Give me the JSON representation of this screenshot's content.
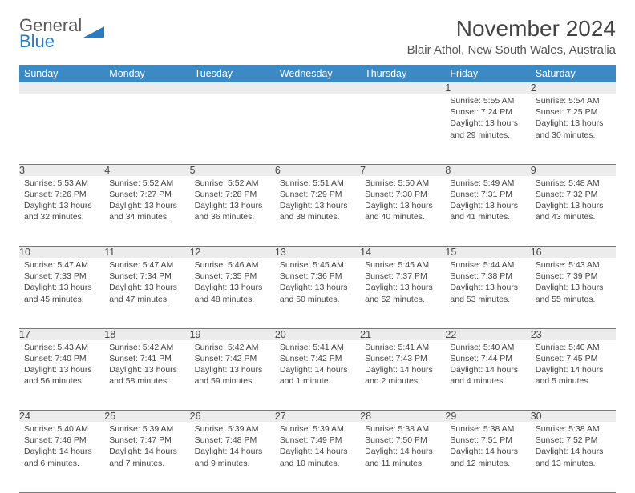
{
  "logo": {
    "line1": "General",
    "line2": "Blue",
    "accent_color": "#2b7bbf",
    "text_color": "#6a6a6a"
  },
  "title": "November 2024",
  "location": "Blair Athol, New South Wales, Australia",
  "day_headers": [
    "Sunday",
    "Monday",
    "Tuesday",
    "Wednesday",
    "Thursday",
    "Friday",
    "Saturday"
  ],
  "header_bg": "#3b8ac4",
  "daynum_bg": "#ececec",
  "weeks": [
    [
      null,
      null,
      null,
      null,
      null,
      {
        "n": "1",
        "sunrise": "Sunrise: 5:55 AM",
        "sunset": "Sunset: 7:24 PM",
        "daylight": "Daylight: 13 hours and 29 minutes."
      },
      {
        "n": "2",
        "sunrise": "Sunrise: 5:54 AM",
        "sunset": "Sunset: 7:25 PM",
        "daylight": "Daylight: 13 hours and 30 minutes."
      }
    ],
    [
      {
        "n": "3",
        "sunrise": "Sunrise: 5:53 AM",
        "sunset": "Sunset: 7:26 PM",
        "daylight": "Daylight: 13 hours and 32 minutes."
      },
      {
        "n": "4",
        "sunrise": "Sunrise: 5:52 AM",
        "sunset": "Sunset: 7:27 PM",
        "daylight": "Daylight: 13 hours and 34 minutes."
      },
      {
        "n": "5",
        "sunrise": "Sunrise: 5:52 AM",
        "sunset": "Sunset: 7:28 PM",
        "daylight": "Daylight: 13 hours and 36 minutes."
      },
      {
        "n": "6",
        "sunrise": "Sunrise: 5:51 AM",
        "sunset": "Sunset: 7:29 PM",
        "daylight": "Daylight: 13 hours and 38 minutes."
      },
      {
        "n": "7",
        "sunrise": "Sunrise: 5:50 AM",
        "sunset": "Sunset: 7:30 PM",
        "daylight": "Daylight: 13 hours and 40 minutes."
      },
      {
        "n": "8",
        "sunrise": "Sunrise: 5:49 AM",
        "sunset": "Sunset: 7:31 PM",
        "daylight": "Daylight: 13 hours and 41 minutes."
      },
      {
        "n": "9",
        "sunrise": "Sunrise: 5:48 AM",
        "sunset": "Sunset: 7:32 PM",
        "daylight": "Daylight: 13 hours and 43 minutes."
      }
    ],
    [
      {
        "n": "10",
        "sunrise": "Sunrise: 5:47 AM",
        "sunset": "Sunset: 7:33 PM",
        "daylight": "Daylight: 13 hours and 45 minutes."
      },
      {
        "n": "11",
        "sunrise": "Sunrise: 5:47 AM",
        "sunset": "Sunset: 7:34 PM",
        "daylight": "Daylight: 13 hours and 47 minutes."
      },
      {
        "n": "12",
        "sunrise": "Sunrise: 5:46 AM",
        "sunset": "Sunset: 7:35 PM",
        "daylight": "Daylight: 13 hours and 48 minutes."
      },
      {
        "n": "13",
        "sunrise": "Sunrise: 5:45 AM",
        "sunset": "Sunset: 7:36 PM",
        "daylight": "Daylight: 13 hours and 50 minutes."
      },
      {
        "n": "14",
        "sunrise": "Sunrise: 5:45 AM",
        "sunset": "Sunset: 7:37 PM",
        "daylight": "Daylight: 13 hours and 52 minutes."
      },
      {
        "n": "15",
        "sunrise": "Sunrise: 5:44 AM",
        "sunset": "Sunset: 7:38 PM",
        "daylight": "Daylight: 13 hours and 53 minutes."
      },
      {
        "n": "16",
        "sunrise": "Sunrise: 5:43 AM",
        "sunset": "Sunset: 7:39 PM",
        "daylight": "Daylight: 13 hours and 55 minutes."
      }
    ],
    [
      {
        "n": "17",
        "sunrise": "Sunrise: 5:43 AM",
        "sunset": "Sunset: 7:40 PM",
        "daylight": "Daylight: 13 hours and 56 minutes."
      },
      {
        "n": "18",
        "sunrise": "Sunrise: 5:42 AM",
        "sunset": "Sunset: 7:41 PM",
        "daylight": "Daylight: 13 hours and 58 minutes."
      },
      {
        "n": "19",
        "sunrise": "Sunrise: 5:42 AM",
        "sunset": "Sunset: 7:42 PM",
        "daylight": "Daylight: 13 hours and 59 minutes."
      },
      {
        "n": "20",
        "sunrise": "Sunrise: 5:41 AM",
        "sunset": "Sunset: 7:42 PM",
        "daylight": "Daylight: 14 hours and 1 minute."
      },
      {
        "n": "21",
        "sunrise": "Sunrise: 5:41 AM",
        "sunset": "Sunset: 7:43 PM",
        "daylight": "Daylight: 14 hours and 2 minutes."
      },
      {
        "n": "22",
        "sunrise": "Sunrise: 5:40 AM",
        "sunset": "Sunset: 7:44 PM",
        "daylight": "Daylight: 14 hours and 4 minutes."
      },
      {
        "n": "23",
        "sunrise": "Sunrise: 5:40 AM",
        "sunset": "Sunset: 7:45 PM",
        "daylight": "Daylight: 14 hours and 5 minutes."
      }
    ],
    [
      {
        "n": "24",
        "sunrise": "Sunrise: 5:40 AM",
        "sunset": "Sunset: 7:46 PM",
        "daylight": "Daylight: 14 hours and 6 minutes."
      },
      {
        "n": "25",
        "sunrise": "Sunrise: 5:39 AM",
        "sunset": "Sunset: 7:47 PM",
        "daylight": "Daylight: 14 hours and 7 minutes."
      },
      {
        "n": "26",
        "sunrise": "Sunrise: 5:39 AM",
        "sunset": "Sunset: 7:48 PM",
        "daylight": "Daylight: 14 hours and 9 minutes."
      },
      {
        "n": "27",
        "sunrise": "Sunrise: 5:39 AM",
        "sunset": "Sunset: 7:49 PM",
        "daylight": "Daylight: 14 hours and 10 minutes."
      },
      {
        "n": "28",
        "sunrise": "Sunrise: 5:38 AM",
        "sunset": "Sunset: 7:50 PM",
        "daylight": "Daylight: 14 hours and 11 minutes."
      },
      {
        "n": "29",
        "sunrise": "Sunrise: 5:38 AM",
        "sunset": "Sunset: 7:51 PM",
        "daylight": "Daylight: 14 hours and 12 minutes."
      },
      {
        "n": "30",
        "sunrise": "Sunrise: 5:38 AM",
        "sunset": "Sunset: 7:52 PM",
        "daylight": "Daylight: 14 hours and 13 minutes."
      }
    ]
  ]
}
